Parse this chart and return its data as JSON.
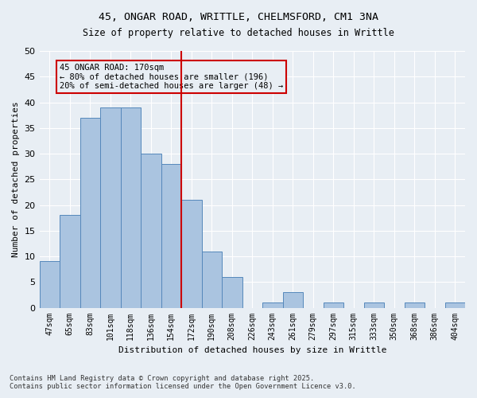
{
  "title_line1": "45, ONGAR ROAD, WRITTLE, CHELMSFORD, CM1 3NA",
  "title_line2": "Size of property relative to detached houses in Writtle",
  "xlabel": "Distribution of detached houses by size in Writtle",
  "ylabel": "Number of detached properties",
  "categories": [
    "47sqm",
    "65sqm",
    "83sqm",
    "101sqm",
    "118sqm",
    "136sqm",
    "154sqm",
    "172sqm",
    "190sqm",
    "208sqm",
    "226sqm",
    "243sqm",
    "261sqm",
    "279sqm",
    "297sqm",
    "315sqm",
    "333sqm",
    "350sqm",
    "368sqm",
    "386sqm",
    "404sqm"
  ],
  "values": [
    9,
    18,
    37,
    39,
    39,
    30,
    28,
    21,
    11,
    6,
    0,
    1,
    3,
    0,
    1,
    0,
    1,
    0,
    1,
    0,
    1
  ],
  "bar_color": "#aac4e0",
  "bar_edge_color": "#5588bb",
  "vline_x": 7,
  "vline_color": "#cc0000",
  "annotation_text": "45 ONGAR ROAD: 170sqm\n← 80% of detached houses are smaller (196)\n20% of semi-detached houses are larger (48) →",
  "annotation_box_color": "#cc0000",
  "ylim": [
    0,
    50
  ],
  "yticks": [
    0,
    5,
    10,
    15,
    20,
    25,
    30,
    35,
    40,
    45,
    50
  ],
  "bg_color": "#e8eef4",
  "grid_color": "#ffffff",
  "footnote": "Contains HM Land Registry data © Crown copyright and database right 2025.\nContains public sector information licensed under the Open Government Licence v3.0."
}
